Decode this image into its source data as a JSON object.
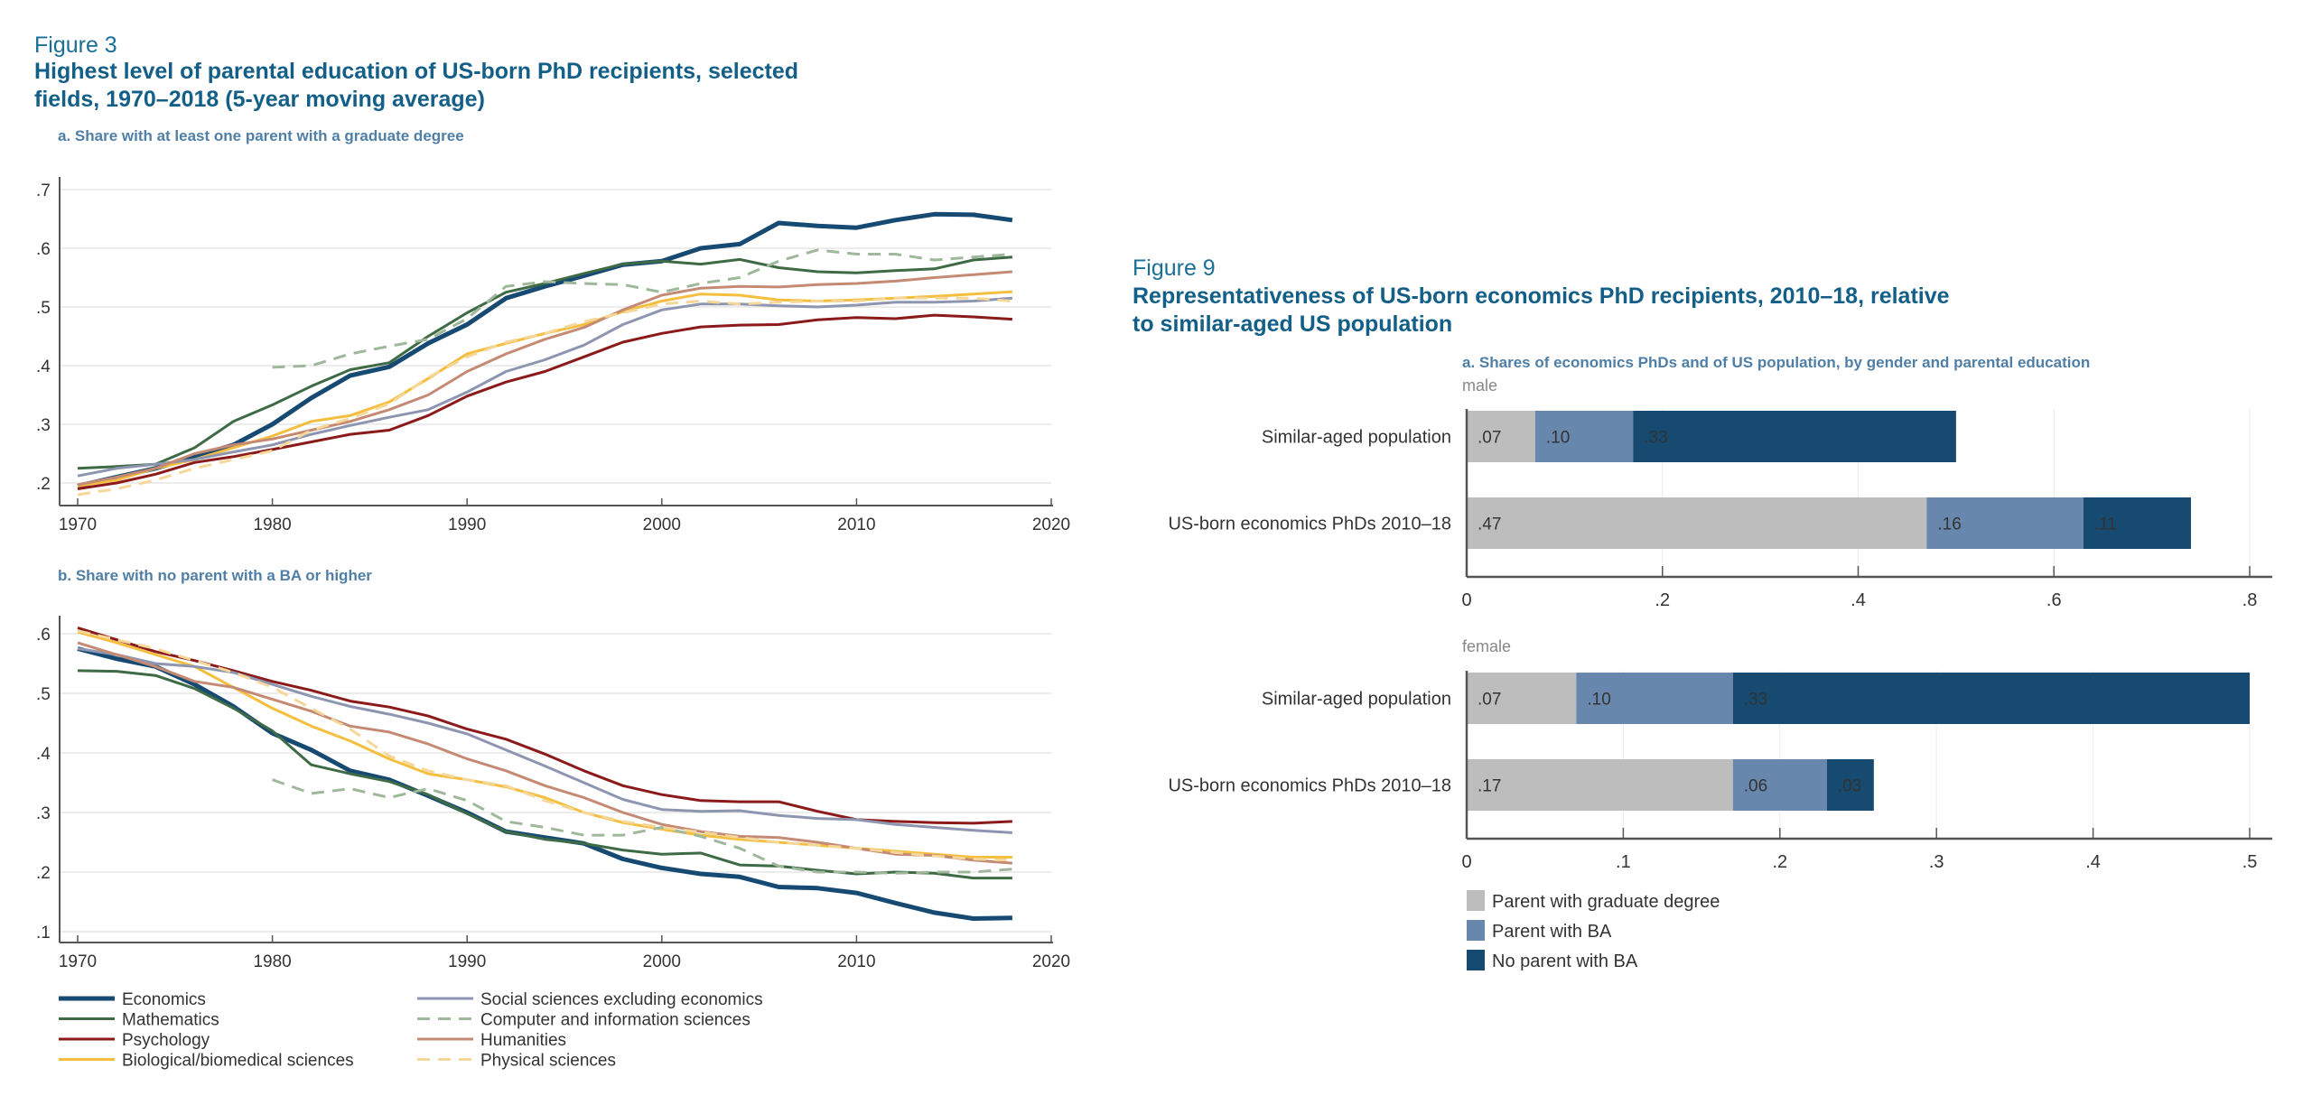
{
  "figure3": {
    "label": "Figure 3",
    "title_line1": "Highest level of parental education of US-born PhD recipients, selected",
    "title_line2": "fields, 1970–2018 (5-year moving average)",
    "panel_a": "a. Share with at least one parent with a graduate degree",
    "panel_b": "b. Share with no parent with a BA or higher"
  },
  "figure9": {
    "label": "Figure 9",
    "title_line1": "Representativeness of US-born economics PhD recipients, 2010–18, relative",
    "title_line2": "to similar-aged US population",
    "panel_a": "a. Shares of economics PhDs and of US population, by gender and parental education",
    "male": "male",
    "female": "female"
  },
  "chart_data": [
    {
      "type": "line",
      "title": "a. Share with at least one parent with a graduate degree",
      "xlim": [
        1970,
        2020
      ],
      "ylim": [
        0.2,
        0.7
      ],
      "xticks": [
        "1970",
        "1980",
        "1990",
        "2000",
        "2010",
        "2020"
      ],
      "yticks": [
        ".2",
        ".3",
        ".4",
        ".5",
        ".6",
        ".7"
      ],
      "grid": true,
      "legend": "bottom",
      "x": [
        1970,
        1972,
        1974,
        1976,
        1978,
        1980,
        1982,
        1984,
        1986,
        1988,
        1990,
        1992,
        1994,
        1996,
        1998,
        2000,
        2002,
        2004,
        2006,
        2008,
        2010,
        2012,
        2014,
        2016,
        2018
      ],
      "series": [
        {
          "name": "Economics",
          "color": "#174a73",
          "width": 5,
          "dash": false,
          "values": [
            0.195,
            0.21,
            0.225,
            0.245,
            0.265,
            0.3,
            0.345,
            0.383,
            0.398,
            0.438,
            0.47,
            0.515,
            0.535,
            0.553,
            0.572,
            0.578,
            0.6,
            0.607,
            0.643,
            0.638,
            0.635,
            0.648,
            0.658,
            0.657,
            0.648
          ]
        },
        {
          "name": "Mathematics",
          "color": "#3e6b45",
          "width": 3,
          "dash": false,
          "values": [
            0.225,
            0.228,
            0.232,
            0.26,
            0.305,
            0.333,
            0.365,
            0.393,
            0.405,
            0.45,
            0.49,
            0.525,
            0.54,
            0.557,
            0.573,
            0.578,
            0.573,
            0.581,
            0.567,
            0.56,
            0.558,
            0.562,
            0.565,
            0.58,
            0.585
          ]
        },
        {
          "name": "Psychology",
          "color": "#8b1a1a",
          "width": 3,
          "dash": false,
          "values": [
            0.19,
            0.2,
            0.215,
            0.235,
            0.245,
            0.257,
            0.27,
            0.283,
            0.29,
            0.315,
            0.348,
            0.372,
            0.39,
            0.415,
            0.44,
            0.455,
            0.466,
            0.469,
            0.47,
            0.478,
            0.482,
            0.48,
            0.486,
            0.483,
            0.479
          ]
        },
        {
          "name": "Biological/biomedical sciences",
          "color": "#f4be3e",
          "width": 3,
          "dash": false,
          "values": [
            0.195,
            0.205,
            0.225,
            0.24,
            0.26,
            0.28,
            0.305,
            0.315,
            0.338,
            0.378,
            0.42,
            0.438,
            0.455,
            0.47,
            0.492,
            0.51,
            0.522,
            0.52,
            0.512,
            0.51,
            0.512,
            0.515,
            0.518,
            0.522,
            0.526
          ]
        },
        {
          "name": "Social sciences excluding economics",
          "color": "#8e95b0",
          "width": 3,
          "dash": false,
          "values": [
            0.212,
            0.225,
            0.232,
            0.24,
            0.253,
            0.265,
            0.283,
            0.298,
            0.312,
            0.325,
            0.355,
            0.39,
            0.41,
            0.435,
            0.47,
            0.495,
            0.505,
            0.505,
            0.502,
            0.5,
            0.503,
            0.508,
            0.508,
            0.51,
            0.515
          ]
        },
        {
          "name": "Computer and information sciences",
          "color": "#9fb79b",
          "width": 3,
          "dash": true,
          "values": [
            null,
            null,
            null,
            null,
            null,
            0.397,
            0.4,
            0.42,
            0.433,
            0.445,
            0.48,
            0.535,
            0.543,
            0.54,
            0.538,
            0.525,
            0.54,
            0.55,
            0.578,
            0.597,
            0.59,
            0.59,
            0.58,
            0.585,
            0.59
          ]
        },
        {
          "name": "Humanities",
          "color": "#c58a74",
          "width": 3,
          "dash": false,
          "values": [
            0.197,
            0.21,
            0.225,
            0.25,
            0.265,
            0.275,
            0.29,
            0.305,
            0.325,
            0.35,
            0.39,
            0.42,
            0.445,
            0.465,
            0.495,
            0.52,
            0.532,
            0.535,
            0.534,
            0.538,
            0.54,
            0.544,
            0.55,
            0.555,
            0.56
          ]
        },
        {
          "name": "Physical sciences",
          "color": "#f6d79a",
          "width": 3,
          "dash": true,
          "values": [
            0.18,
            0.19,
            0.205,
            0.225,
            0.24,
            0.255,
            0.29,
            0.31,
            0.335,
            0.38,
            0.415,
            0.44,
            0.455,
            0.475,
            0.49,
            0.505,
            0.51,
            0.505,
            0.508,
            0.51,
            0.51,
            0.515,
            0.515,
            0.515,
            0.51
          ]
        }
      ]
    },
    {
      "type": "line",
      "title": "b. Share with no parent with a BA or higher",
      "xlim": [
        1970,
        2020
      ],
      "ylim": [
        0.1,
        0.6
      ],
      "xticks": [
        "1970",
        "1980",
        "1990",
        "2000",
        "2010",
        "2020"
      ],
      "yticks": [
        ".1",
        ".2",
        ".3",
        ".4",
        ".5",
        ".6"
      ],
      "grid": true,
      "x": [
        1970,
        1972,
        1974,
        1976,
        1978,
        1980,
        1982,
        1984,
        1986,
        1988,
        1990,
        1992,
        1994,
        1996,
        1998,
        2000,
        2002,
        2004,
        2006,
        2008,
        2010,
        2012,
        2014,
        2016,
        2018
      ],
      "series": [
        {
          "name": "Economics",
          "color": "#174a73",
          "width": 5,
          "dash": false,
          "values": [
            0.575,
            0.558,
            0.545,
            0.515,
            0.478,
            0.433,
            0.405,
            0.37,
            0.355,
            0.328,
            0.3,
            0.268,
            0.258,
            0.248,
            0.222,
            0.207,
            0.197,
            0.192,
            0.175,
            0.173,
            0.165,
            0.148,
            0.132,
            0.122,
            0.123
          ]
        },
        {
          "name": "Mathematics",
          "color": "#3e6b45",
          "width": 3,
          "dash": false,
          "values": [
            0.538,
            0.537,
            0.53,
            0.508,
            0.475,
            0.437,
            0.38,
            0.365,
            0.352,
            0.33,
            0.298,
            0.268,
            0.255,
            0.248,
            0.237,
            0.23,
            0.232,
            0.212,
            0.21,
            0.203,
            0.197,
            0.2,
            0.198,
            0.19,
            0.19
          ]
        },
        {
          "name": "Psychology",
          "color": "#8b1a1a",
          "width": 3,
          "dash": false,
          "values": [
            0.61,
            0.59,
            0.57,
            0.555,
            0.538,
            0.52,
            0.505,
            0.487,
            0.477,
            0.462,
            0.44,
            0.423,
            0.398,
            0.37,
            0.345,
            0.33,
            0.32,
            0.318,
            0.318,
            0.302,
            0.288,
            0.285,
            0.283,
            0.282,
            0.285
          ]
        },
        {
          "name": "Biological/biomedical sciences",
          "color": "#f4be3e",
          "width": 3,
          "dash": false,
          "values": [
            0.603,
            0.585,
            0.565,
            0.545,
            0.51,
            0.475,
            0.445,
            0.42,
            0.39,
            0.365,
            0.355,
            0.343,
            0.325,
            0.3,
            0.283,
            0.272,
            0.262,
            0.255,
            0.25,
            0.245,
            0.24,
            0.235,
            0.23,
            0.225,
            0.225
          ]
        },
        {
          "name": "Social sciences excluding economics",
          "color": "#8e95b0",
          "width": 3,
          "dash": false,
          "values": [
            0.575,
            0.565,
            0.55,
            0.545,
            0.535,
            0.515,
            0.495,
            0.478,
            0.465,
            0.45,
            0.432,
            0.405,
            0.378,
            0.35,
            0.322,
            0.305,
            0.302,
            0.303,
            0.295,
            0.29,
            0.288,
            0.28,
            0.275,
            0.27,
            0.266
          ]
        },
        {
          "name": "Computer and information sciences",
          "color": "#9fb79b",
          "width": 3,
          "dash": true,
          "values": [
            null,
            null,
            null,
            null,
            null,
            0.355,
            0.332,
            0.34,
            0.325,
            0.34,
            0.32,
            0.285,
            0.275,
            0.262,
            0.262,
            0.275,
            0.26,
            0.24,
            0.21,
            0.2,
            0.2,
            0.198,
            0.2,
            0.2,
            0.205
          ]
        },
        {
          "name": "Humanities",
          "color": "#c58a74",
          "width": 3,
          "dash": false,
          "values": [
            0.585,
            0.565,
            0.545,
            0.52,
            0.51,
            0.49,
            0.47,
            0.445,
            0.435,
            0.415,
            0.39,
            0.37,
            0.345,
            0.325,
            0.3,
            0.28,
            0.268,
            0.26,
            0.258,
            0.25,
            0.24,
            0.23,
            0.228,
            0.22,
            0.215
          ]
        },
        {
          "name": "Physical sciences",
          "color": "#f6d79a",
          "width": 3,
          "dash": true,
          "values": [
            0.605,
            0.59,
            0.575,
            0.555,
            0.535,
            0.51,
            0.475,
            0.44,
            0.395,
            0.37,
            0.355,
            0.345,
            0.32,
            0.3,
            0.285,
            0.275,
            0.267,
            0.258,
            0.25,
            0.245,
            0.24,
            0.233,
            0.227,
            0.222,
            0.22
          ]
        }
      ]
    },
    {
      "type": "bar",
      "orientation": "horizontal",
      "stacked": true,
      "title": "male",
      "xlim": [
        0,
        0.8
      ],
      "xticks": [
        "0",
        ".2",
        ".4",
        ".6",
        ".8"
      ],
      "categories": [
        "Similar-aged population",
        "US-born economics PhDs 2010–18"
      ],
      "series": [
        {
          "name": "Parent with graduate degree",
          "color": "#bdbdbd",
          "values": [
            0.07,
            0.47
          ],
          "labels": [
            ".07",
            ".47"
          ],
          "label_color": "#222"
        },
        {
          "name": "Parent with BA",
          "color": "#6787ad",
          "values": [
            0.1,
            0.16
          ],
          "labels": [
            ".10",
            ".16"
          ],
          "label_color": "#111"
        },
        {
          "name": "No parent with BA",
          "color": "#164a70",
          "values": [
            0.33,
            0.11
          ],
          "labels": [
            ".33",
            ".11"
          ],
          "label_color": "#fff"
        }
      ]
    },
    {
      "type": "bar",
      "orientation": "horizontal",
      "stacked": true,
      "title": "female",
      "xlim": [
        0,
        0.5
      ],
      "xticks": [
        "0",
        ".1",
        ".2",
        ".3",
        ".4",
        ".5"
      ],
      "categories": [
        "Similar-aged population",
        "US-born economics PhDs 2010–18"
      ],
      "series": [
        {
          "name": "Parent with graduate degree",
          "color": "#bdbdbd",
          "values": [
            0.07,
            0.17
          ],
          "labels": [
            ".07",
            ".17"
          ],
          "label_color": "#222"
        },
        {
          "name": "Parent with BA",
          "color": "#6787ad",
          "values": [
            0.1,
            0.06
          ],
          "labels": [
            ".10",
            ".06"
          ],
          "label_color": "#111"
        },
        {
          "name": "No parent with BA",
          "color": "#164a70",
          "values": [
            0.33,
            0.03
          ],
          "labels": [
            ".33",
            ".03"
          ],
          "label_color": "#fff"
        }
      ]
    }
  ]
}
